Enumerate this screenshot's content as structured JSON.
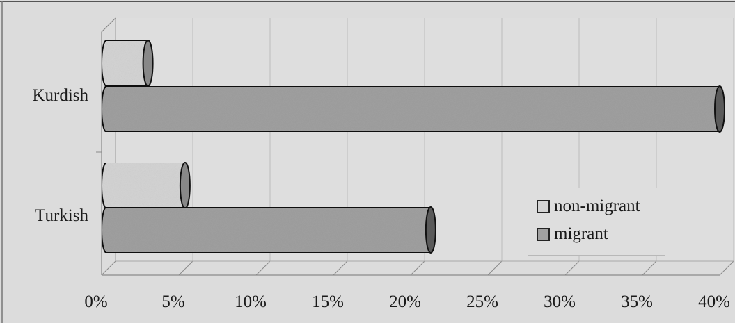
{
  "chart_data": {
    "type": "bar",
    "orientation": "horizontal",
    "style": "3d-cylinder",
    "categories": [
      "Kurdish",
      "Turkish"
    ],
    "series": [
      {
        "name": "non-migrant",
        "values": [
          3,
          5.4
        ],
        "color": "#d4d4d4"
      },
      {
        "name": "migrant",
        "values": [
          40,
          21.3
        ],
        "color": "#a0a0a0"
      }
    ],
    "x_ticks": [
      "0%",
      "5%",
      "10%",
      "15%",
      "20%",
      "25%",
      "30%",
      "35%",
      "40%"
    ],
    "xlim": [
      0,
      40
    ],
    "grid": true,
    "legend_position": "bottom-right",
    "title": "",
    "xlabel": "",
    "ylabel": ""
  }
}
